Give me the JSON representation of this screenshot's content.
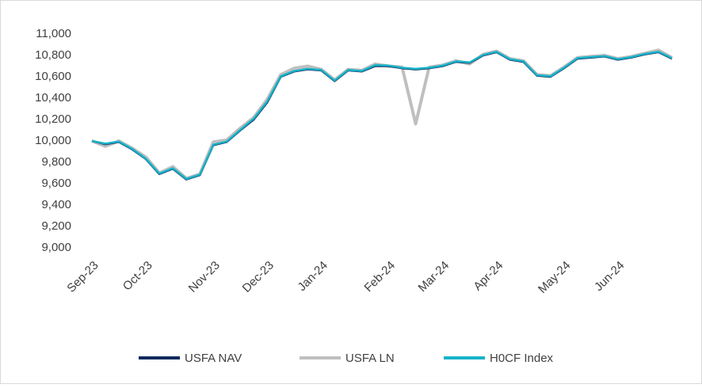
{
  "chart_data": {
    "type": "line",
    "categories": [
      "Sep-23",
      null,
      null,
      null,
      "Oct-23",
      null,
      null,
      null,
      null,
      "Nov-23",
      null,
      null,
      null,
      "Dec-23",
      null,
      null,
      null,
      "Jan-24",
      null,
      null,
      null,
      null,
      "Feb-24",
      null,
      null,
      null,
      "Mar-24",
      null,
      null,
      null,
      "Apr-24",
      null,
      null,
      null,
      null,
      "May-24",
      null,
      null,
      null,
      "Jun-24",
      null,
      null,
      null,
      null
    ],
    "series": [
      {
        "name": "USFA LN",
        "color": "#bfbfbf",
        "values": [
          10000,
          9950,
          10000,
          9930,
          9850,
          9700,
          9760,
          9650,
          9690,
          9990,
          10010,
          10120,
          10220,
          10390,
          10620,
          10680,
          10700,
          10670,
          10570,
          10670,
          10660,
          10720,
          10700,
          10690,
          10160,
          10690,
          10710,
          10750,
          10720,
          10810,
          10840,
          10770,
          10750,
          10620,
          10610,
          10690,
          10780,
          10790,
          10800,
          10770,
          10790,
          10820,
          10850,
          10780
        ]
      },
      {
        "name": "USFA NAV",
        "color": "#0d2a5c",
        "values": [
          10000,
          9970,
          9990,
          9920,
          9830,
          9690,
          9740,
          9640,
          9680,
          9960,
          9990,
          10100,
          10200,
          10360,
          10600,
          10650,
          10670,
          10660,
          10560,
          10660,
          10650,
          10700,
          10700,
          10680,
          10670,
          10680,
          10700,
          10740,
          10730,
          10800,
          10830,
          10760,
          10740,
          10610,
          10600,
          10680,
          10770,
          10780,
          10790,
          10760,
          10780,
          10810,
          10830,
          10770
        ]
      },
      {
        "name": "H0CF Index",
        "color": "#17b3c9",
        "values": [
          10000,
          9975,
          9995,
          9925,
          9835,
          9695,
          9745,
          9645,
          9685,
          9965,
          9995,
          10105,
          10210,
          10370,
          10605,
          10655,
          10675,
          10665,
          10565,
          10665,
          10655,
          10710,
          10705,
          10685,
          10675,
          10685,
          10705,
          10745,
          10735,
          10805,
          10835,
          10765,
          10745,
          10615,
          10605,
          10685,
          10775,
          10785,
          10795,
          10765,
          10785,
          10815,
          10835,
          10775
        ]
      }
    ],
    "ylim": [
      9000,
      11000
    ],
    "yticks": [
      {
        "value": 9000,
        "label": "9,000"
      },
      {
        "value": 9200,
        "label": "9,200"
      },
      {
        "value": 9400,
        "label": "9,400"
      },
      {
        "value": 9600,
        "label": "9,600"
      },
      {
        "value": 9800,
        "label": "9,800"
      },
      {
        "value": 10000,
        "label": "10,000"
      },
      {
        "value": 10200,
        "label": "10,200"
      },
      {
        "value": 10400,
        "label": "10,400"
      },
      {
        "value": 10600,
        "label": "10,600"
      },
      {
        "value": 10800,
        "label": "10,800"
      },
      {
        "value": 11000,
        "label": "11,000"
      }
    ],
    "grid": false,
    "legend": "bottom"
  }
}
